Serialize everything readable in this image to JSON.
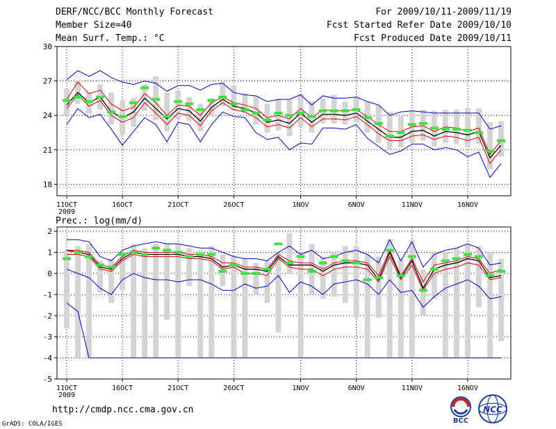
{
  "header": {
    "title": "DERF/NCC/BCC Monthly Forecast",
    "member": "Member Size=40",
    "variable": "Mean Surf. Temp.: °C",
    "period": "For 2009/10/11-2009/11/19",
    "started": "Fcst Started Refer Date 2009/10/10",
    "produced": "Fcst Produced Date 2009/10/11"
  },
  "footer": {
    "url": "http://cmdp.ncc.cma.gov.cn",
    "grads": "GrADS: COLA/IGES",
    "logo_bcc": "BCC",
    "logo_ncc": "NCC"
  },
  "chart_data": [
    {
      "type": "line",
      "title": "Mean Surf. Temp.: °C",
      "xlabel": "",
      "ylabel": "°C",
      "ylim": [
        17,
        30
      ],
      "yticks": [
        18,
        21,
        24,
        27,
        30
      ],
      "xtick_labels": [
        "11OCT",
        "16OCT",
        "21OCT",
        "26OCT",
        "1NOV",
        "6NOV",
        "11NOV",
        "16NOV"
      ],
      "xtick_days": [
        1,
        6,
        11,
        16,
        22,
        27,
        32,
        37
      ],
      "year_label": "2009",
      "days": 40,
      "mean": [
        24.9,
        26.0,
        25.1,
        25.6,
        24.3,
        23.8,
        24.3,
        25.5,
        24.6,
        23.7,
        24.6,
        24.4,
        23.5,
        24.7,
        25.4,
        24.8,
        24.6,
        24.2,
        23.4,
        23.6,
        23.3,
        24.2,
        23.4,
        24.1,
        24.1,
        24.0,
        24.2,
        23.5,
        22.8,
        22.1,
        22.1,
        22.6,
        22.7,
        22.2,
        22.6,
        22.5,
        22.3,
        22.6,
        20.3,
        21.4
      ],
      "series": [
        {
          "name": "max",
          "values": [
            27.1,
            27.9,
            27.4,
            27.9,
            27.3,
            26.9,
            26.7,
            27.0,
            26.8,
            26.1,
            26.6,
            26.6,
            26.2,
            26.7,
            26.8,
            26.0,
            25.8,
            25.7,
            25.2,
            25.4,
            25.4,
            25.8,
            24.9,
            25.7,
            25.5,
            25.5,
            25.6,
            25.2,
            24.9,
            24.0,
            24.3,
            24.4,
            24.3,
            24.2,
            24.2,
            24.2,
            24.2,
            24.2,
            22.8,
            23.1
          ]
        },
        {
          "name": "upper",
          "values": [
            25.4,
            26.9,
            25.9,
            26.2,
            25.0,
            24.4,
            24.7,
            25.9,
            25.1,
            24.0,
            24.9,
            24.8,
            24.0,
            25.1,
            25.6,
            25.1,
            24.9,
            24.6,
            23.8,
            24.0,
            23.7,
            24.6,
            23.8,
            24.5,
            24.4,
            24.4,
            24.5,
            23.9,
            23.2,
            22.6,
            22.6,
            23.0,
            23.1,
            22.6,
            23.0,
            22.9,
            22.6,
            22.9,
            20.6,
            21.8
          ]
        },
        {
          "name": "mean",
          "values": [
            24.9,
            26.0,
            25.1,
            25.6,
            24.3,
            23.8,
            24.3,
            25.5,
            24.6,
            23.7,
            24.6,
            24.4,
            23.5,
            24.7,
            25.4,
            24.8,
            24.6,
            24.2,
            23.4,
            23.6,
            23.3,
            24.2,
            23.4,
            24.1,
            24.1,
            24.0,
            24.2,
            23.5,
            22.8,
            22.1,
            22.1,
            22.6,
            22.7,
            22.2,
            22.6,
            22.5,
            22.3,
            22.6,
            20.3,
            21.4
          ]
        },
        {
          "name": "lower",
          "values": [
            24.6,
            25.8,
            24.8,
            25.3,
            24.0,
            23.4,
            23.8,
            25.1,
            24.2,
            23.2,
            24.2,
            24.0,
            23.1,
            24.4,
            25.1,
            24.5,
            24.3,
            23.8,
            23.0,
            23.2,
            22.9,
            23.8,
            23.0,
            23.7,
            23.7,
            23.6,
            23.9,
            23.2,
            22.4,
            21.8,
            21.8,
            22.2,
            22.3,
            21.9,
            22.2,
            22.1,
            21.8,
            22.1,
            19.8,
            21.0
          ]
        },
        {
          "name": "min",
          "values": [
            23.2,
            24.6,
            23.8,
            24.1,
            22.8,
            21.4,
            22.6,
            23.8,
            23.2,
            21.7,
            23.4,
            23.2,
            21.7,
            23.2,
            24.3,
            23.9,
            23.8,
            22.5,
            21.9,
            22.1,
            21.0,
            21.6,
            21.5,
            22.9,
            22.9,
            22.8,
            23.2,
            22.0,
            21.3,
            20.6,
            20.9,
            21.5,
            21.5,
            21.0,
            21.2,
            21.0,
            20.4,
            20.8,
            18.6,
            19.8
          ]
        }
      ],
      "bars_low": [
        24.0,
        25.0,
        24.2,
        24.5,
        23.2,
        22.3,
        23.0,
        24.4,
        23.6,
        22.6,
        23.7,
        23.5,
        22.6,
        23.9,
        24.8,
        24.4,
        24.2,
        23.2,
        22.5,
        22.7,
        22.2,
        23.0,
        22.5,
        23.3,
        23.3,
        23.2,
        23.4,
        22.5,
        21.6,
        21.0,
        21.2,
        21.6,
        21.8,
        21.3,
        21.6,
        21.5,
        21.2,
        21.5,
        19.3,
        20.4
      ],
      "bars_high": [
        26.3,
        27.0,
        26.0,
        26.7,
        26.0,
        25.3,
        25.5,
        26.7,
        27.4,
        26.0,
        26.2,
        25.6,
        25.0,
        25.5,
        26.9,
        26.6,
        25.9,
        25.7,
        25.0,
        25.4,
        25.4,
        25.9,
        25.2,
        25.5,
        25.8,
        25.2,
        25.6,
        25.2,
        24.9,
        24.3,
        23.9,
        24.4,
        24.5,
        24.4,
        24.5,
        24.5,
        24.6,
        24.6,
        23.4,
        23.5
      ],
      "obs_marks": [
        25.3,
        25.6,
        25.2,
        25.6,
        24.3,
        23.9,
        25.1,
        26.4,
        25.4,
        23.9,
        25.2,
        25.0,
        24.5,
        25.3,
        25.6,
        25.0,
        24.5,
        24.2,
        23.6,
        24.2,
        24.0,
        24.2,
        23.9,
        24.4,
        24.4,
        24.4,
        24.5,
        23.8,
        23.3,
        22.2,
        22.5,
        23.2,
        23.3,
        22.9,
        22.8,
        22.8,
        22.7,
        22.5,
        20.9,
        21.8
      ]
    },
    {
      "type": "line",
      "title": "Prec.: log(mm/d)",
      "xlabel": "",
      "ylabel": "log(mm/d)",
      "ylim": [
        -5,
        2.2
      ],
      "yticks": [
        -5,
        -4,
        -3,
        -2,
        -1,
        0,
        1,
        2
      ],
      "xtick_labels": [
        "11OCT",
        "16OCT",
        "21OCT",
        "26OCT",
        "1NOV",
        "6NOV",
        "11NOV",
        "16NOV"
      ],
      "xtick_days": [
        1,
        6,
        11,
        16,
        22,
        27,
        32,
        37
      ],
      "year_label": "2009",
      "days": 40,
      "series": [
        {
          "name": "max",
          "values": [
            1.6,
            1.6,
            1.5,
            0.8,
            0.6,
            1.1,
            1.3,
            1.4,
            1.5,
            1.4,
            1.4,
            1.3,
            1.2,
            1.2,
            1.0,
            0.8,
            0.7,
            0.7,
            0.6,
            1.0,
            1.3,
            0.9,
            1.1,
            0.7,
            0.8,
            1.0,
            1.1,
            0.9,
            0.5,
            1.6,
            0.6,
            1.5,
            0.3,
            0.9,
            1.1,
            1.2,
            1.4,
            1.2,
            0.4,
            0.5
          ]
        },
        {
          "name": "upper",
          "values": [
            1.1,
            1.1,
            1.0,
            0.4,
            0.3,
            0.8,
            1.1,
            1.0,
            1.0,
            1.0,
            1.0,
            0.9,
            0.9,
            0.8,
            0.5,
            0.5,
            0.3,
            0.3,
            0.2,
            0.9,
            0.6,
            0.5,
            0.5,
            0.2,
            0.5,
            0.6,
            0.6,
            0.5,
            -0.1,
            1.1,
            -0.1,
            0.7,
            -0.4,
            0.4,
            0.5,
            0.6,
            0.8,
            0.7,
            0.0,
            0.2
          ]
        },
        {
          "name": "mean",
          "values": [
            1.1,
            1.0,
            0.9,
            0.3,
            0.2,
            0.7,
            1.0,
            0.9,
            0.9,
            0.9,
            0.9,
            0.8,
            0.8,
            0.7,
            0.3,
            0.4,
            0.2,
            0.2,
            0.1,
            0.8,
            0.4,
            0.4,
            0.4,
            0.1,
            0.4,
            0.5,
            0.5,
            0.4,
            -0.3,
            1.0,
            -0.2,
            0.6,
            -0.7,
            0.2,
            0.4,
            0.5,
            0.7,
            0.6,
            -0.2,
            -0.1
          ]
        },
        {
          "name": "lower",
          "values": [
            0.9,
            0.9,
            0.8,
            0.2,
            0.1,
            0.6,
            0.9,
            0.8,
            0.8,
            0.8,
            0.8,
            0.7,
            0.7,
            0.6,
            0.2,
            0.3,
            0.0,
            0.0,
            -0.1,
            0.7,
            0.3,
            0.2,
            0.2,
            -0.1,
            0.2,
            0.3,
            0.3,
            0.2,
            -0.4,
            0.8,
            -0.3,
            0.4,
            -0.8,
            0.0,
            0.2,
            0.3,
            0.5,
            0.4,
            -0.3,
            -0.2
          ]
        },
        {
          "name": "min",
          "values": [
            0.2,
            0.0,
            -0.2,
            -0.7,
            -1.0,
            -0.3,
            0.0,
            -0.2,
            -0.3,
            -0.3,
            -0.4,
            -0.3,
            -0.3,
            -0.5,
            -0.8,
            -0.8,
            -0.5,
            -0.7,
            -0.6,
            -0.1,
            -0.9,
            -0.4,
            -0.6,
            -1.0,
            -0.5,
            -0.4,
            -0.3,
            -0.5,
            -1.0,
            -0.3,
            -0.9,
            -0.8,
            -1.6,
            -1.1,
            -0.7,
            -0.5,
            -0.3,
            -0.6,
            -1.2,
            -1.1
          ]
        }
      ],
      "lowest_line": [
        -1.4,
        -1.8,
        -4.0,
        -4.0,
        -4.0,
        -4.0,
        -4.0,
        -4.0,
        -4.0,
        -4.0,
        -4.0,
        -4.0,
        -4.0,
        -4.0,
        -4.0,
        -4.0,
        -4.0,
        -4.0,
        -4.0,
        -4.0,
        -4.0,
        -4.0,
        -4.0,
        -4.0,
        -4.0,
        -4.0,
        -4.0,
        -4.0,
        -4.0,
        -4.0,
        -4.0,
        -4.0,
        -4.0,
        -4.0,
        -4.0,
        -4.0,
        -4.0,
        -4.0,
        -4.0,
        -4.0
      ],
      "bars_low": [
        -2.6,
        -4.0,
        -4.0,
        -0.9,
        -1.4,
        -0.8,
        -4.0,
        -4.0,
        -4.0,
        -2.2,
        -4.0,
        -0.6,
        -4.0,
        -4.0,
        -0.6,
        -4.0,
        -4.0,
        -1.0,
        -1.4,
        -2.8,
        0.0,
        -4.0,
        -1.0,
        -1.2,
        -1.1,
        -1.4,
        -2.1,
        -4.0,
        -2.1,
        -4.0,
        -4.0,
        -4.0,
        -2.0,
        -1.2,
        -4.0,
        -4.0,
        -4.0,
        -1.6,
        -4.0,
        -3.2
      ],
      "bars_high": [
        1.1,
        1.3,
        1.4,
        0.6,
        0.7,
        1.0,
        1.4,
        1.2,
        1.4,
        1.4,
        1.4,
        1.2,
        1.1,
        1.3,
        0.9,
        0.8,
        0.7,
        0.5,
        0.6,
        1.0,
        1.9,
        1.0,
        1.4,
        0.8,
        1.0,
        1.3,
        1.3,
        0.9,
        0.8,
        1.6,
        0.7,
        1.6,
        0.2,
        1.0,
        1.0,
        1.2,
        1.4,
        1.3,
        1.0,
        0.7
      ],
      "obs_marks": [
        0.7,
        1.0,
        0.8,
        0.4,
        0.3,
        0.9,
        1.0,
        0.9,
        1.2,
        1.1,
        1.0,
        0.8,
        0.9,
        0.9,
        0.1,
        0.4,
        0.0,
        0.0,
        0.2,
        1.4,
        0.5,
        0.8,
        0.1,
        0.5,
        0.8,
        0.6,
        0.5,
        -0.3,
        -0.2,
        1.1,
        -0.1,
        0.8,
        -0.8,
        0.2,
        0.6,
        0.7,
        0.9,
        0.8,
        -0.1,
        0.1
      ]
    }
  ]
}
